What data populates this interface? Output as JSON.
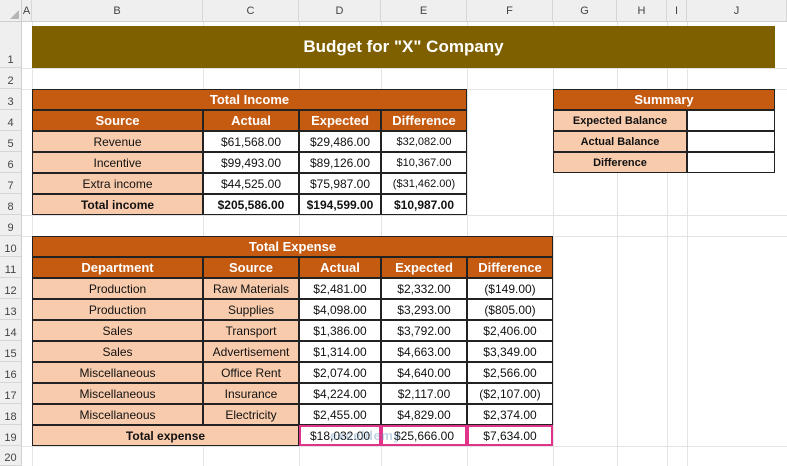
{
  "columns": [
    "A",
    "B",
    "C",
    "D",
    "E",
    "F",
    "G",
    "H",
    "I",
    "J"
  ],
  "rows": [
    "1",
    "2",
    "3",
    "4",
    "5",
    "6",
    "7",
    "8",
    "9",
    "10",
    "11",
    "12",
    "13",
    "14",
    "15",
    "16",
    "17",
    "18",
    "19",
    "20"
  ],
  "title": "Budget for \"X\" Company",
  "income": {
    "header": "Total Income",
    "columns": [
      "Source",
      "Actual",
      "Expected",
      "Difference"
    ],
    "rows": [
      {
        "source": "Revenue",
        "actual": "$61,568.00",
        "expected": "$29,486.00",
        "difference": "$32,082.00"
      },
      {
        "source": "Incentive",
        "actual": "$99,493.00",
        "expected": "$89,126.00",
        "difference": "$10,367.00"
      },
      {
        "source": "Extra income",
        "actual": "$44,525.00",
        "expected": "$75,987.00",
        "difference": "($31,462.00)"
      }
    ],
    "total": {
      "label": "Total income",
      "actual": "$205,586.00",
      "expected": "$194,599.00",
      "difference": "$10,987.00"
    }
  },
  "summary": {
    "header": "Summary",
    "rows": [
      {
        "label": "Expected Balance",
        "value": ""
      },
      {
        "label": "Actual Balance",
        "value": ""
      },
      {
        "label": "Difference",
        "value": ""
      }
    ]
  },
  "expense": {
    "header": "Total Expense",
    "columns": [
      "Department",
      "Source",
      "Actual",
      "Expected",
      "Difference"
    ],
    "rows": [
      {
        "department": "Production",
        "source": "Raw Materials",
        "actual": "$2,481.00",
        "expected": "$2,332.00",
        "difference": "($149.00)"
      },
      {
        "department": "Production",
        "source": "Supplies",
        "actual": "$4,098.00",
        "expected": "$3,293.00",
        "difference": "($805.00)"
      },
      {
        "department": "Sales",
        "source": "Transport",
        "actual": "$1,386.00",
        "expected": "$3,792.00",
        "difference": "$2,406.00"
      },
      {
        "department": "Sales",
        "source": "Advertisement",
        "actual": "$1,314.00",
        "expected": "$4,663.00",
        "difference": "$3,349.00"
      },
      {
        "department": "Miscellaneous",
        "source": "Office Rent",
        "actual": "$2,074.00",
        "expected": "$4,640.00",
        "difference": "$2,566.00"
      },
      {
        "department": "Miscellaneous",
        "source": "Insurance",
        "actual": "$4,224.00",
        "expected": "$2,117.00",
        "difference": "($2,107.00)"
      },
      {
        "department": "Miscellaneous",
        "source": "Electricity",
        "actual": "$2,455.00",
        "expected": "$4,829.00",
        "difference": "$2,374.00"
      }
    ],
    "total": {
      "label": "Total expense",
      "actual": "$18,032.00",
      "expected": "$25,666.00",
      "difference": "$7,634.00"
    }
  },
  "watermark": "exceldemy",
  "colors": {
    "title_band": "#7f6000",
    "header": "#c55a11",
    "peach": "#f8cbad",
    "highlight": "#e0338a"
  }
}
